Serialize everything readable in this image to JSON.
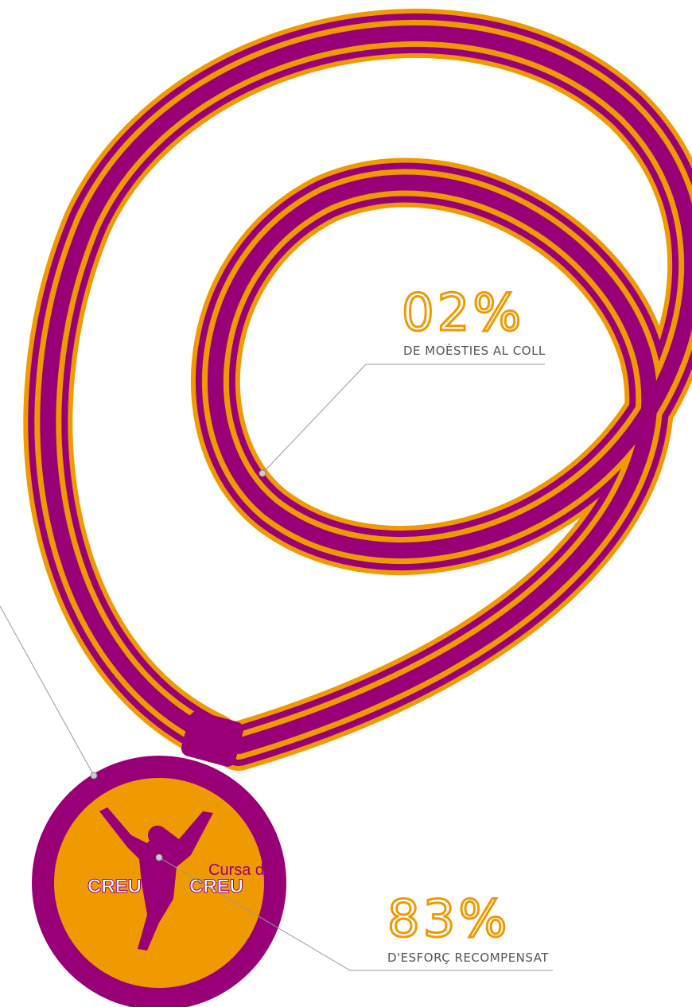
{
  "stats": [
    {
      "figure": "02%",
      "caption": "DE MOÈSTIES AL COLL"
    },
    {
      "figure": "83%",
      "caption": "D'ESFORÇ RECOMPENSAT"
    }
  ],
  "logo": {
    "line1": "Cursa de",
    "left": "CREU",
    "middle": "A",
    "right": "CREU"
  }
}
